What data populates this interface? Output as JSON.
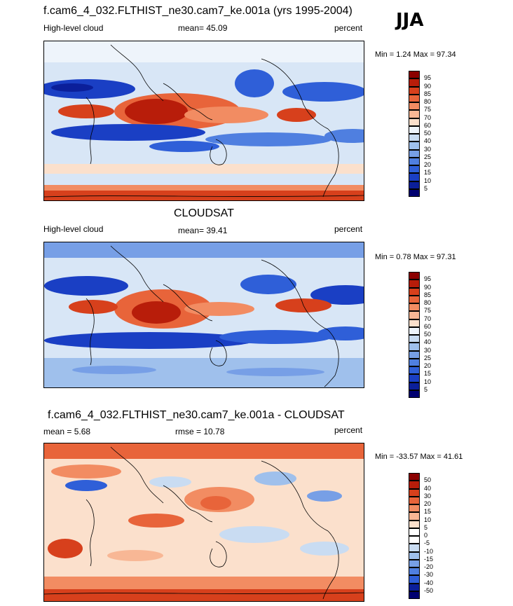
{
  "season": "JJA",
  "panels": [
    {
      "title": "f.cam6_4_032.FLTHIST_ne30.cam7_ke.001a (yrs 1995-2004)",
      "left": "High-level cloud",
      "center": "mean=  45.09",
      "right": "percent",
      "minmax": "Min =   1.24 Max =  97.34",
      "levels": [
        "95",
        "90",
        "85",
        "80",
        "75",
        "70",
        "60",
        "50",
        "40",
        "30",
        "25",
        "20",
        "15",
        "10",
        "5"
      ],
      "palette": "seq"
    },
    {
      "title": "CLOUDSAT",
      "left": "High-level cloud",
      "center": "mean=  39.41",
      "right": "percent",
      "minmax": "Min =   0.78 Max =  97.31",
      "levels": [
        "95",
        "90",
        "85",
        "80",
        "75",
        "70",
        "60",
        "50",
        "40",
        "30",
        "25",
        "20",
        "15",
        "10",
        "5"
      ],
      "palette": "seq"
    },
    {
      "title": "f.cam6_4_032.FLTHIST_ne30.cam7_ke.001a - CLOUDSAT",
      "left": "mean =   5.68",
      "center": "rmse =  10.78",
      "right": "percent",
      "minmax": "Min = -33.57 Max =  41.61",
      "levels": [
        "50",
        "40",
        "30",
        "20",
        "15",
        "10",
        "5",
        "0",
        "-5",
        "-10",
        "-15",
        "-20",
        "-30",
        "-40",
        "-50"
      ],
      "palette": "div"
    }
  ],
  "colors": {
    "seq": [
      "#8b0000",
      "#b81d0a",
      "#d7401c",
      "#e8643a",
      "#f28c62",
      "#f8b795",
      "#fbe0cc",
      "#eef4fb",
      "#c9dcf2",
      "#9fc0ec",
      "#779fe6",
      "#4f7fe0",
      "#2f5fd8",
      "#1a3fc4",
      "#0b1f9a",
      "#000070"
    ],
    "div": [
      "#8b0000",
      "#b81d0a",
      "#d7401c",
      "#e8643a",
      "#f28c62",
      "#f8b795",
      "#fbe0cc",
      "#ffffff",
      "#ffffff",
      "#c9dcf2",
      "#9fc0ec",
      "#779fe6",
      "#4f7fe0",
      "#2f5fd8",
      "#0b1f9a",
      "#000070"
    ]
  },
  "chart_data": [
    {
      "type": "heatmap",
      "title": "f.cam6_4_032.FLTHIST_ne30.cam7_ke.001a (yrs 1995-2004)",
      "variable": "High-level cloud",
      "units": "percent",
      "mean": 45.09,
      "min": 1.24,
      "max": 97.34,
      "contour_levels": [
        5,
        10,
        15,
        20,
        25,
        30,
        40,
        50,
        60,
        70,
        75,
        80,
        85,
        90,
        95
      ]
    },
    {
      "type": "heatmap",
      "title": "CLOUDSAT",
      "variable": "High-level cloud",
      "units": "percent",
      "mean": 39.41,
      "min": 0.78,
      "max": 97.31,
      "contour_levels": [
        5,
        10,
        15,
        20,
        25,
        30,
        40,
        50,
        60,
        70,
        75,
        80,
        85,
        90,
        95
      ]
    },
    {
      "type": "heatmap",
      "title": "f.cam6_4_032.FLTHIST_ne30.cam7_ke.001a - CLOUDSAT",
      "units": "percent",
      "mean": 5.68,
      "rmse": 10.78,
      "min": -33.57,
      "max": 41.61,
      "contour_levels": [
        -50,
        -40,
        -30,
        -20,
        -15,
        -10,
        -5,
        0,
        5,
        10,
        15,
        20,
        30,
        40,
        50
      ]
    }
  ]
}
